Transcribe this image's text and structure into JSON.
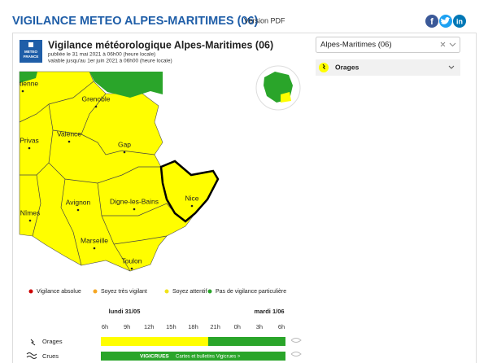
{
  "header": {
    "title": "VIGILANCE METEO ALPES-MARITIMES (06)",
    "pdf_link": "Version PDF"
  },
  "social": {
    "facebook": "f",
    "linkedin": "in"
  },
  "bulletin": {
    "logo": [
      "METEO",
      "FRANCE"
    ],
    "title": "Vigilance météorologique Alpes-Maritimes  (06)",
    "published": "publiée le 31 mai 2021 à 06h00 (heure locale)",
    "valid": "valable jusqu'au 1er juin 2021 à 06h00 (heure locale)"
  },
  "map": {
    "labels": [
      "tienne",
      "Grenoble",
      "Valence",
      "Privas",
      "Gap",
      "Avignon",
      "Digne-les-Bains",
      "Nice",
      "Nîmes",
      "Marseille",
      "Toulon"
    ]
  },
  "legend": [
    "Vigilance absolue",
    "Soyez très vigilant",
    "Soyez attentif",
    "Pas de vigilance particulière"
  ],
  "timeline": {
    "days": [
      "lundi 31/05",
      "mardi 1/06"
    ],
    "hours": [
      "6h",
      "9h",
      "12h",
      "15h",
      "18h",
      "21h",
      "0h",
      "3h",
      "6h"
    ],
    "rows": [
      {
        "label": "Orages"
      },
      {
        "label": "Crues",
        "badge": "VIGICRUES",
        "link": "Cartes et bulletins Vigicrues >"
      }
    ]
  },
  "sidebar": {
    "select": "Alpes-Maritimes (06)",
    "hazard": "Orages"
  }
}
